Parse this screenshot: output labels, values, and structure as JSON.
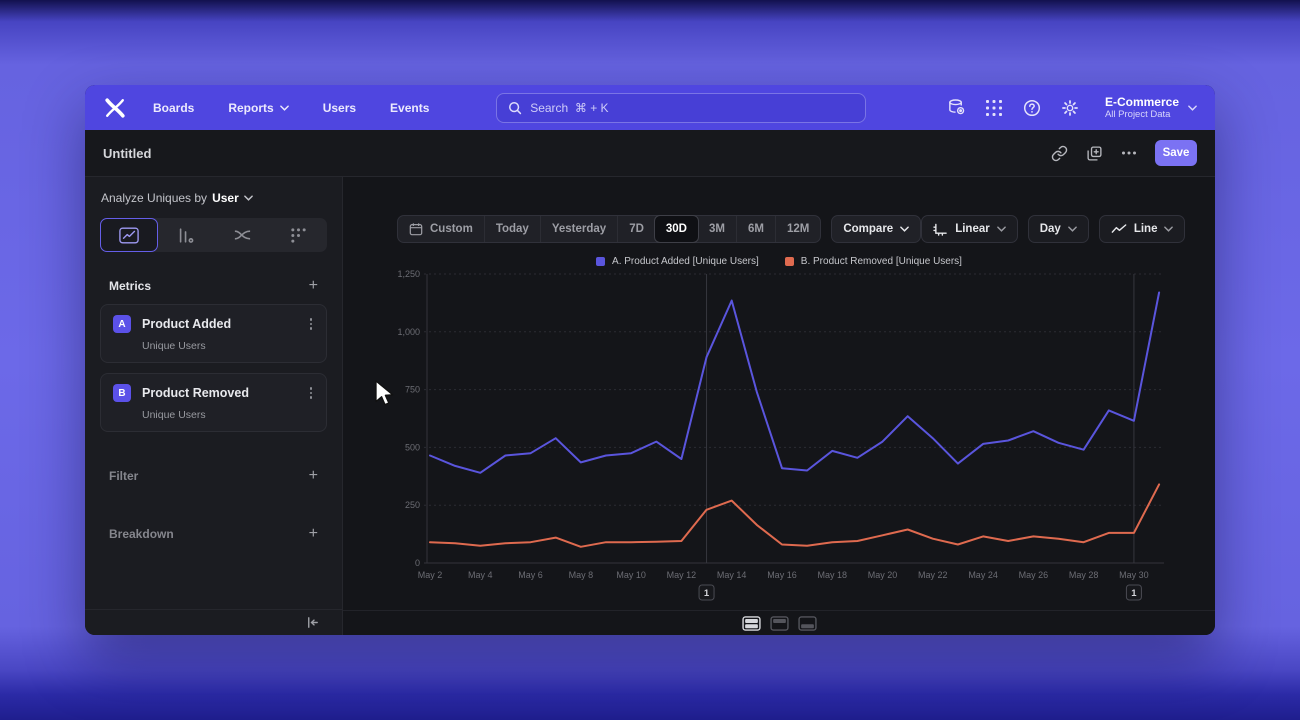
{
  "nav": {
    "menu": [
      "Boards",
      "Reports",
      "Users",
      "Events"
    ],
    "search_placeholder": "Search  ⌘ + K",
    "project_name": "E-Commerce",
    "project_scope": "All Project Data"
  },
  "titlebar": {
    "title": "Untitled",
    "save_label": "Save"
  },
  "sidebar": {
    "analyze_label": "Analyze Uniques by",
    "analyze_value": "User",
    "metrics_label": "Metrics",
    "metrics": [
      {
        "badge": "A",
        "name": "Product Added",
        "subtitle": "Unique Users"
      },
      {
        "badge": "B",
        "name": "Product Removed",
        "subtitle": "Unique Users"
      }
    ],
    "filter_label": "Filter",
    "breakdown_label": "Breakdown"
  },
  "toolbar": {
    "ranges": [
      "Custom",
      "Today",
      "Yesterday",
      "7D",
      "30D",
      "3M",
      "6M",
      "12M"
    ],
    "selected_range": "30D",
    "compare_label": "Compare",
    "scale_label": "Linear",
    "interval_label": "Day",
    "chart_type_label": "Line"
  },
  "colors": {
    "nav_purple": "#4f46e0",
    "accent_purple": "#7b72f3",
    "series_a": "#5a55dd",
    "series_b": "#df6a4f"
  },
  "chart_data": {
    "type": "line",
    "x": [
      "May 2",
      "May 3",
      "May 4",
      "May 5",
      "May 6",
      "May 7",
      "May 8",
      "May 9",
      "May 10",
      "May 11",
      "May 12",
      "May 13",
      "May 14",
      "May 15",
      "May 16",
      "May 17",
      "May 18",
      "May 19",
      "May 20",
      "May 21",
      "May 22",
      "May 23",
      "May 24",
      "May 25",
      "May 26",
      "May 27",
      "May 28",
      "May 29",
      "May 30",
      "May 31"
    ],
    "x_tick_every": 2,
    "ylim": [
      0,
      1250
    ],
    "yticks": [
      0,
      250,
      500,
      750,
      1000,
      1250
    ],
    "ytick_labels": [
      "0",
      "250",
      "500",
      "750",
      "1,000",
      "1,250"
    ],
    "grid": "horizontal-dashed",
    "legend_position": "top-center",
    "series": [
      {
        "name": "A. Product Added [Unique Users]",
        "color": "#5a55dd",
        "values": [
          465,
          420,
          390,
          465,
          475,
          540,
          435,
          465,
          475,
          525,
          450,
          890,
          1135,
          740,
          410,
          400,
          485,
          455,
          525,
          635,
          540,
          430,
          515,
          530,
          570,
          520,
          490,
          660,
          615,
          1170
        ]
      },
      {
        "name": "B. Product Removed [Unique Users]",
        "color": "#df6a4f",
        "values": [
          90,
          85,
          75,
          85,
          90,
          110,
          70,
          90,
          90,
          92,
          95,
          230,
          270,
          165,
          80,
          75,
          90,
          95,
          120,
          145,
          105,
          80,
          115,
          95,
          115,
          105,
          90,
          130,
          130,
          340
        ]
      }
    ],
    "annotations": [
      {
        "index": 11,
        "label": "1"
      },
      {
        "index": 28,
        "label": "1"
      }
    ]
  }
}
